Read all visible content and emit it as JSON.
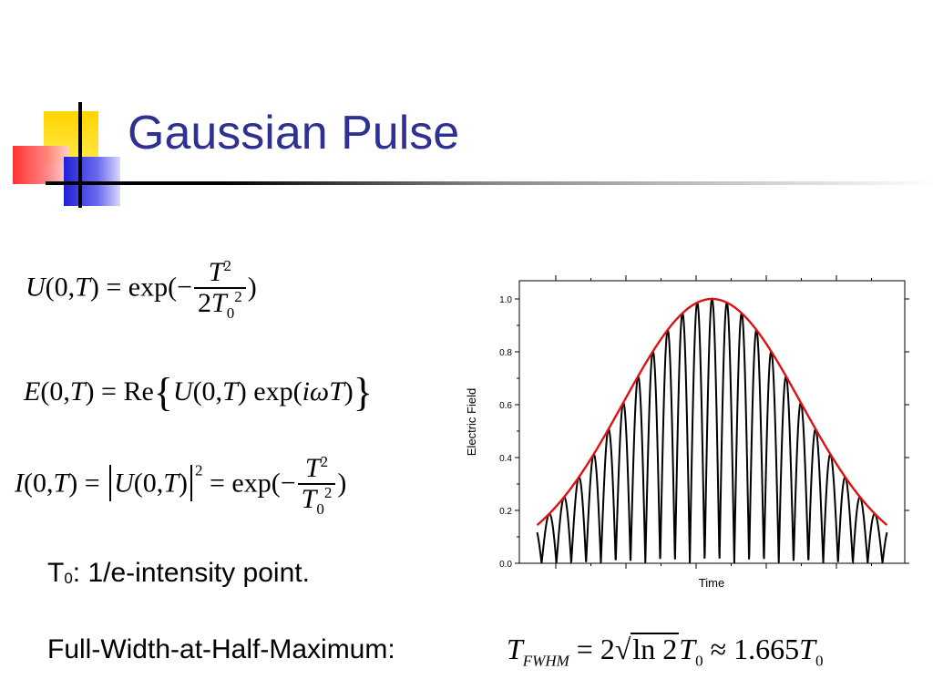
{
  "slide": {
    "title": "Gaussian Pulse"
  },
  "equations": {
    "eq1": {
      "lhs_func": "U",
      "lhs_args": "(0,",
      "lhs_var": "T",
      "lhs_close": ")",
      "equals": "=",
      "fn": "exp(−",
      "num": "T",
      "num_exp": "2",
      "den_coef": "2",
      "den_var": "T",
      "den_sub": "0",
      "den_exp": "2",
      "close": ")"
    },
    "eq2": {
      "lhs_func": "E",
      "lhs_args": "(0,",
      "lhs_var": "T",
      "lhs_close": ")",
      "equals": "=",
      "re": "Re",
      "open_brace": "{",
      "u": "U",
      "u_args": "(0,",
      "u_var": "T",
      "u_close": ")",
      "fn": "exp(",
      "i": "i",
      "omega": "ω",
      "t": "T",
      "fn_close": ")",
      "close_brace": "}"
    },
    "eq3": {
      "lhs_func": "I",
      "lhs_args": "(0,",
      "lhs_var": "T",
      "lhs_close": ")",
      "equals": "=",
      "u": "U",
      "u_args": "(0,",
      "u_var": "T",
      "u_close": ")",
      "exp2": "2",
      "equals2": "=",
      "fn": "exp(−",
      "num": "T",
      "num_exp": "2",
      "den_var": "T",
      "den_sub": "0",
      "den_exp": "2",
      "close": ")"
    },
    "fwhm": {
      "lhs": "T",
      "lhs_sub": "FWHM",
      "equals": "=",
      "coef": "2",
      "radicand": "ln 2",
      "t": "T",
      "t_sub": "0",
      "approx": "≈",
      "value": "1.665",
      "t2": "T",
      "t2_sub": "0"
    }
  },
  "text": {
    "t0_symbol": "T",
    "t0_sub": "0",
    "t0_desc": ": 1/e-intensity point.",
    "fwhm_label": "Full-Width-at-Half-Maximum:"
  },
  "chart_data": {
    "type": "line",
    "title": "",
    "xlabel": "Time",
    "ylabel": "Electric Field",
    "ylim": [
      0,
      1.0
    ],
    "xlim": [
      -1.3,
      1.3
    ],
    "yticks": [
      "0.0",
      "0.2",
      "0.4",
      "0.6",
      "0.8",
      "1.0"
    ],
    "grid": false,
    "series": [
      {
        "color": "#000000",
        "function": "abs(exp(-x^2/(2*0.36)) * cos(pi*x/0.1))",
        "x_range": [
          -1.3,
          1.3
        ]
      },
      {
        "color": "#dd1111",
        "function": "exp(-x^2/(2*0.36))",
        "x_range": [
          -1.3,
          1.3
        ]
      }
    ]
  }
}
